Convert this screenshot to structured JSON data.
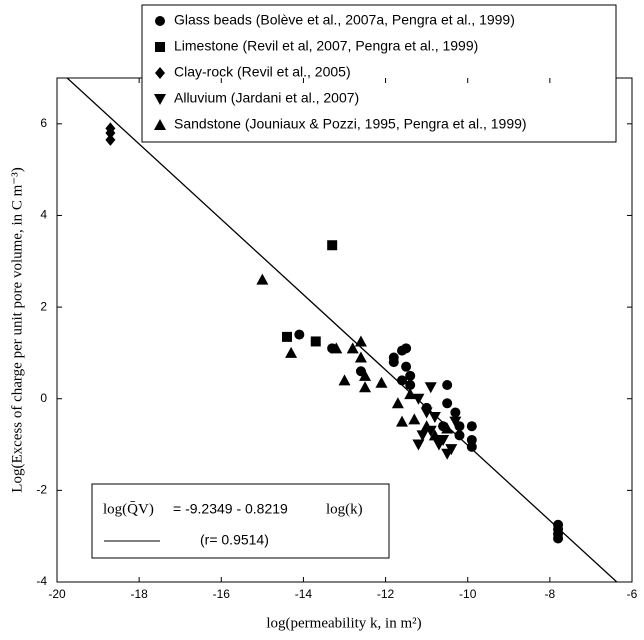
{
  "chart_data": {
    "type": "scatter",
    "xlabel": "log(permeability k, in m²)",
    "ylabel": "Log(Excess of charge per unit pore volume, in C m⁻³)",
    "xlim": [
      -20,
      -6
    ],
    "xticks": [
      -20,
      -18,
      -16,
      -14,
      -12,
      -10,
      -8,
      -6
    ],
    "ylim": [
      -4,
      7
    ],
    "yticks": [
      -4,
      -2,
      0,
      2,
      4,
      6
    ],
    "series": [
      {
        "name": "Glass beads (Bolève et al., 2007a, Pengra et al., 1999)",
        "marker": "circle",
        "color": "#000000",
        "x": [
          -14.1,
          -13.3,
          -12.6,
          -11.8,
          -11.8,
          -11.6,
          -11.5,
          -11.5,
          -11.4,
          -11.4,
          -11.6,
          -10.5,
          -10.5,
          -10.3,
          -10.2,
          -10.2,
          -9.9,
          -9.9,
          -9.9,
          -10.6,
          -11.0,
          -7.8,
          -7.8,
          -7.8,
          -7.8
        ],
        "values": [
          1.4,
          1.1,
          0.6,
          0.8,
          0.9,
          1.05,
          1.1,
          0.7,
          0.5,
          0.3,
          0.4,
          0.3,
          -0.1,
          -0.3,
          -0.6,
          -0.8,
          -0.6,
          -0.9,
          -1.05,
          -0.6,
          -0.2,
          -2.75,
          -2.85,
          -2.95,
          -3.05
        ]
      },
      {
        "name": "Limestone (Revil et al, 2007, Pengra et al., 1999)",
        "marker": "square",
        "color": "#000000",
        "x": [
          -13.3,
          -14.4,
          -13.7
        ],
        "values": [
          3.35,
          1.35,
          1.25
        ]
      },
      {
        "name": "Clay-rock (Revil et al., 2005)",
        "marker": "diamond",
        "color": "#000000",
        "x": [
          -18.7,
          -18.7,
          -18.7
        ],
        "values": [
          5.9,
          5.8,
          5.65
        ]
      },
      {
        "name": "Alluvium (Jardani et al., 2007)",
        "marker": "triangle-down",
        "color": "#000000",
        "x": [
          -10.9,
          -11.2,
          -11.0,
          -10.8,
          -10.9,
          -11.1,
          -10.7,
          -10.5,
          -10.4,
          -10.6,
          -11.2,
          -10.3
        ],
        "values": [
          0.25,
          0.0,
          -0.3,
          -0.4,
          -0.7,
          -0.8,
          -1.0,
          -1.2,
          -1.1,
          -0.9,
          -1.0,
          -0.5
        ]
      },
      {
        "name": "Sandstone (Jouniaux & Pozzi, 1995, Pengra et al., 1999)",
        "marker": "triangle-up",
        "color": "#000000",
        "x": [
          -15.0,
          -14.3,
          -12.6,
          -12.8,
          -13.2,
          -13.0,
          -12.5,
          -12.5,
          -12.1,
          -11.7,
          -11.6,
          -11.3,
          -11.0,
          -10.8,
          -10.5,
          -12.6,
          -11.4
        ],
        "values": [
          2.6,
          1.0,
          1.25,
          1.1,
          1.1,
          0.4,
          0.5,
          0.25,
          0.35,
          -0.1,
          -0.5,
          -0.45,
          -0.6,
          -0.8,
          -0.65,
          0.9,
          0.1
        ]
      }
    ],
    "fit": {
      "intercept": -9.2349,
      "slope": -0.8219
    },
    "equation_lhs": "log(Q̄V)",
    "equation_mid": "= -9.2349 - 0.8219",
    "equation_rhs": "log(k)",
    "r_label": "(r= 0.9514)"
  }
}
